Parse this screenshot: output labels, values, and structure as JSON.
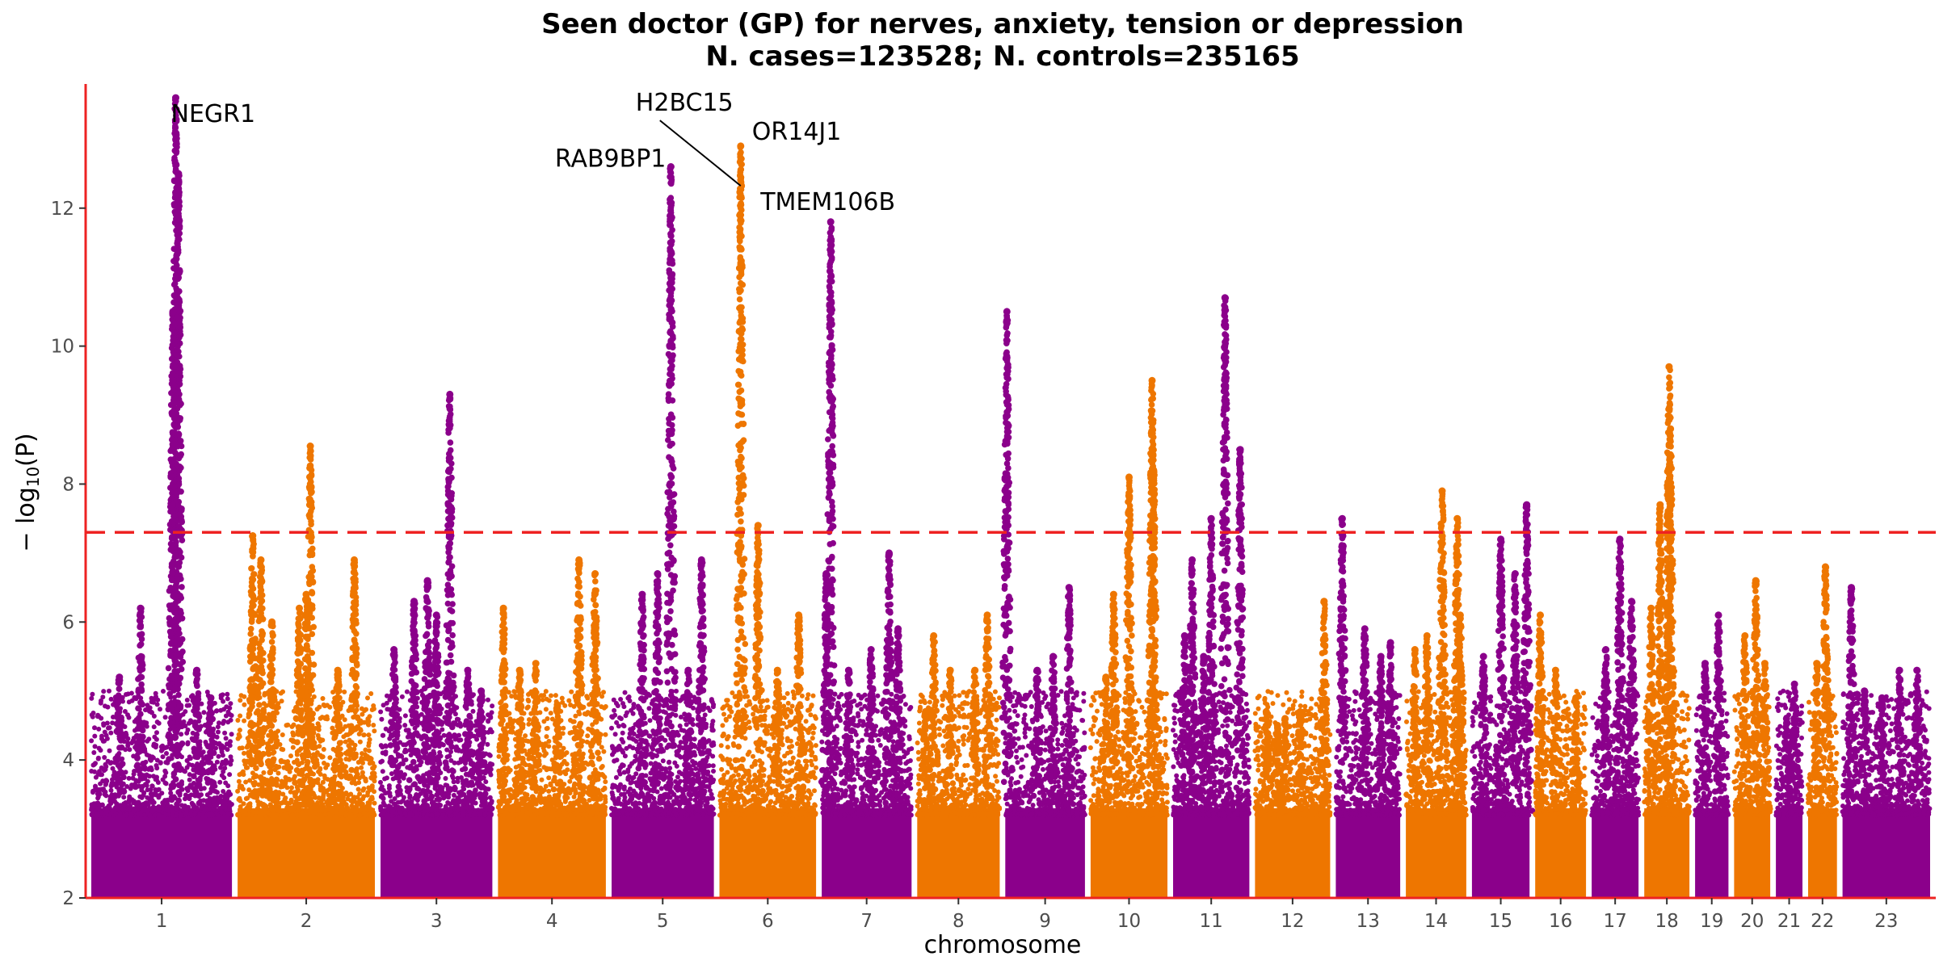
{
  "chart_data": {
    "type": "scatter",
    "subtype": "manhattan",
    "title": "Seen doctor (GP) for nerves, anxiety, tension or depression",
    "subtitle": "N. cases=123528; N. controls=235165",
    "xlabel": "chromosome",
    "ylabel": "− log10(P)",
    "ylabel_parts": {
      "prefix": "− log",
      "sub": "10",
      "suffix": "(P)"
    },
    "ylim": [
      2,
      13.8
    ],
    "yticks": [
      2,
      4,
      6,
      8,
      10,
      12
    ],
    "significance_line": 7.3,
    "colors": {
      "odd": "#8B008B",
      "even": "#EE7600",
      "threshold": "#EE2222",
      "axis": "#EE2222"
    },
    "chromosomes": [
      {
        "label": "1",
        "len": 249,
        "peaks": [
          [
            0.6,
            13.6
          ],
          [
            0.62,
            12.5
          ],
          [
            0.58,
            10.5
          ],
          [
            0.35,
            6.2
          ],
          [
            0.2,
            5.2
          ],
          [
            0.75,
            5.3
          ],
          [
            0.85,
            4.9
          ]
        ]
      },
      {
        "label": "2",
        "len": 243,
        "peaks": [
          [
            0.11,
            7.25
          ],
          [
            0.17,
            6.9
          ],
          [
            0.25,
            6.0
          ],
          [
            0.53,
            8.55
          ],
          [
            0.5,
            6.4
          ],
          [
            0.45,
            6.2
          ],
          [
            0.73,
            5.3
          ],
          [
            0.85,
            6.9
          ]
        ]
      },
      {
        "label": "3",
        "len": 198,
        "peaks": [
          [
            0.12,
            5.6
          ],
          [
            0.3,
            6.3
          ],
          [
            0.42,
            6.6
          ],
          [
            0.5,
            6.1
          ],
          [
            0.62,
            9.3
          ],
          [
            0.78,
            5.3
          ],
          [
            0.9,
            5.0
          ]
        ]
      },
      {
        "label": "4",
        "len": 191,
        "peaks": [
          [
            0.05,
            6.2
          ],
          [
            0.2,
            5.3
          ],
          [
            0.35,
            5.4
          ],
          [
            0.55,
            4.8
          ],
          [
            0.75,
            6.9
          ],
          [
            0.9,
            6.7
          ]
        ]
      },
      {
        "label": "5",
        "len": 181,
        "peaks": [
          [
            0.3,
            6.4
          ],
          [
            0.45,
            6.7
          ],
          [
            0.58,
            12.6
          ],
          [
            0.75,
            5.3
          ],
          [
            0.88,
            6.9
          ]
        ]
      },
      {
        "label": "6",
        "len": 171,
        "peaks": [
          [
            0.22,
            12.9
          ],
          [
            0.4,
            7.4
          ],
          [
            0.6,
            5.3
          ],
          [
            0.82,
            6.1
          ]
        ]
      },
      {
        "label": "7",
        "len": 159,
        "peaks": [
          [
            0.05,
            6.7
          ],
          [
            0.1,
            11.8
          ],
          [
            0.3,
            5.3
          ],
          [
            0.55,
            5.6
          ],
          [
            0.75,
            7.0
          ],
          [
            0.85,
            5.9
          ]
        ]
      },
      {
        "label": "8",
        "len": 146,
        "peaks": [
          [
            0.1,
            4.7
          ],
          [
            0.2,
            5.8
          ],
          [
            0.4,
            5.3
          ],
          [
            0.7,
            5.3
          ],
          [
            0.85,
            6.1
          ]
        ]
      },
      {
        "label": "9",
        "len": 141,
        "peaks": [
          [
            0.02,
            10.5
          ],
          [
            0.4,
            5.3
          ],
          [
            0.6,
            5.5
          ],
          [
            0.8,
            6.5
          ]
        ]
      },
      {
        "label": "10",
        "len": 136,
        "peaks": [
          [
            0.3,
            6.4
          ],
          [
            0.5,
            8.1
          ],
          [
            0.8,
            9.5
          ],
          [
            0.82,
            8.2
          ],
          [
            0.2,
            5.2
          ]
        ]
      },
      {
        "label": "11",
        "len": 135,
        "peaks": [
          [
            0.15,
            5.8
          ],
          [
            0.25,
            6.9
          ],
          [
            0.5,
            7.5
          ],
          [
            0.68,
            10.7
          ],
          [
            0.88,
            8.5
          ],
          [
            0.4,
            5.5
          ]
        ]
      },
      {
        "label": "12",
        "len": 133,
        "peaks": [
          [
            0.15,
            4.7
          ],
          [
            0.4,
            4.6
          ],
          [
            0.6,
            4.7
          ],
          [
            0.92,
            6.3
          ],
          [
            0.3,
            4.5
          ]
        ]
      },
      {
        "label": "13",
        "len": 114,
        "peaks": [
          [
            0.1,
            7.5
          ],
          [
            0.45,
            5.9
          ],
          [
            0.7,
            5.5
          ],
          [
            0.85,
            5.7
          ]
        ]
      },
      {
        "label": "14",
        "len": 107,
        "peaks": [
          [
            0.15,
            5.6
          ],
          [
            0.35,
            5.8
          ],
          [
            0.6,
            7.9
          ],
          [
            0.85,
            7.5
          ],
          [
            0.9,
            6.1
          ]
        ]
      },
      {
        "label": "15",
        "len": 102,
        "peaks": [
          [
            0.2,
            5.5
          ],
          [
            0.5,
            7.2
          ],
          [
            0.75,
            6.7
          ],
          [
            0.95,
            7.7
          ]
        ]
      },
      {
        "label": "16",
        "len": 90,
        "peaks": [
          [
            0.1,
            6.1
          ],
          [
            0.4,
            5.3
          ],
          [
            0.8,
            4.9
          ]
        ]
      },
      {
        "label": "17",
        "len": 83,
        "peaks": [
          [
            0.3,
            5.6
          ],
          [
            0.6,
            7.2
          ],
          [
            0.85,
            6.3
          ]
        ]
      },
      {
        "label": "18",
        "len": 80,
        "peaks": [
          [
            0.15,
            6.2
          ],
          [
            0.35,
            7.7
          ],
          [
            0.55,
            9.7
          ],
          [
            0.58,
            8.8
          ]
        ]
      },
      {
        "label": "19",
        "len": 59,
        "peaks": [
          [
            0.3,
            5.4
          ],
          [
            0.7,
            6.1
          ]
        ]
      },
      {
        "label": "20",
        "len": 64,
        "peaks": [
          [
            0.3,
            5.8
          ],
          [
            0.6,
            6.6
          ],
          [
            0.85,
            5.4
          ]
        ]
      },
      {
        "label": "21",
        "len": 47,
        "peaks": [
          [
            0.4,
            4.6
          ],
          [
            0.7,
            5.1
          ]
        ]
      },
      {
        "label": "22",
        "len": 51,
        "peaks": [
          [
            0.3,
            5.4
          ],
          [
            0.6,
            6.8
          ]
        ]
      },
      {
        "label": "23",
        "len": 155,
        "peaks": [
          [
            0.1,
            6.5
          ],
          [
            0.25,
            5.0
          ],
          [
            0.45,
            4.9
          ],
          [
            0.65,
            5.3
          ],
          [
            0.85,
            5.3
          ]
        ]
      }
    ],
    "gene_labels": [
      {
        "text": "NEGR1",
        "chrom": "1",
        "pos": 0.6,
        "y": 13.6
      },
      {
        "text": "H2BC15",
        "chrom": "6",
        "pos": 0.22,
        "y": 12.3
      },
      {
        "text": "OR14J1",
        "chrom": "6",
        "pos": 0.22,
        "y": 12.9
      },
      {
        "text": "RAB9BP1",
        "chrom": "5",
        "pos": 0.58,
        "y": 12.6
      },
      {
        "text": "TMEM106B",
        "chrom": "7",
        "pos": 0.1,
        "y": 11.8
      }
    ]
  }
}
